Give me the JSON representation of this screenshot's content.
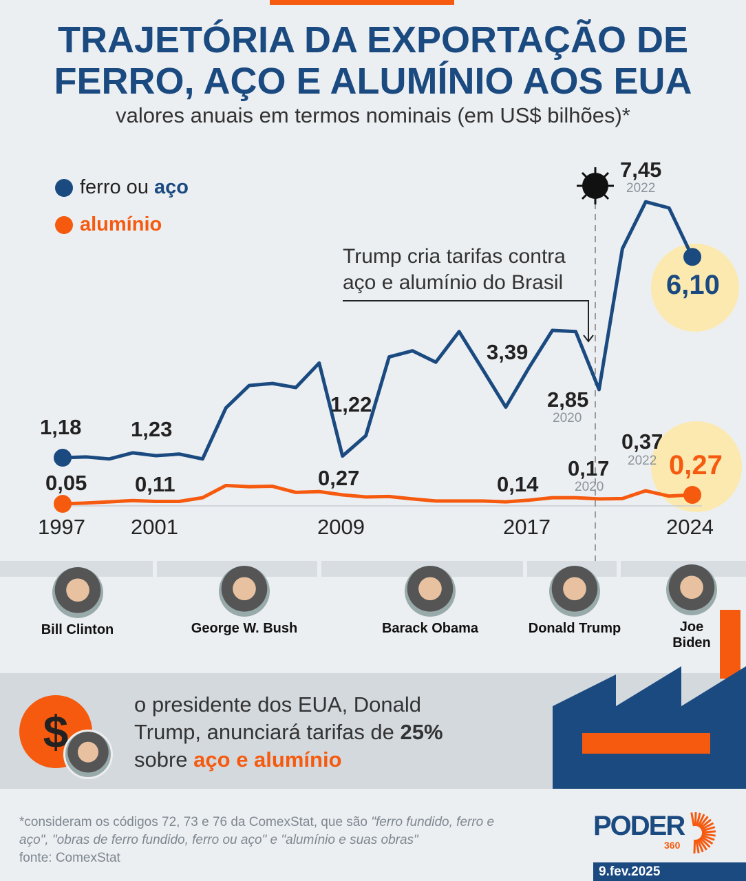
{
  "header": {
    "title_line1": "TRAJETÓRIA DA EXPORTAÇÃO DE",
    "title_line2": "FERRO, AÇO E ALUMÍNIO AOS EUA",
    "subtitle": "valores anuais em termos nominais (em US$ bilhões)*"
  },
  "colors": {
    "steel": "#1a4a80",
    "aluminum": "#f55a0f",
    "highlight": "#fbe9b0"
  },
  "chart_data": {
    "type": "line",
    "title": "TRAJETÓRIA DA EXPORTAÇÃO DE FERRO, AÇO E ALUMÍNIO AOS EUA",
    "ylabel": "US$ bilhões",
    "xlim": [
      1997,
      2024
    ],
    "ylim": [
      0,
      7.5
    ],
    "x": [
      1997,
      1998,
      1999,
      2000,
      2001,
      2002,
      2003,
      2004,
      2005,
      2006,
      2007,
      2008,
      2009,
      2010,
      2011,
      2012,
      2013,
      2014,
      2015,
      2016,
      2017,
      2018,
      2019,
      2020,
      2021,
      2022,
      2023,
      2024
    ],
    "x_ticks": [
      "1997",
      "2001",
      "2009",
      "2017",
      "2024"
    ],
    "series": [
      {
        "name": "ferro ou aço",
        "values": [
          1.18,
          1.2,
          1.15,
          1.3,
          1.23,
          1.27,
          1.15,
          2.4,
          2.95,
          3.0,
          2.9,
          3.5,
          1.22,
          1.72,
          3.65,
          3.8,
          3.52,
          4.27,
          3.35,
          2.42,
          3.39,
          4.3,
          4.27,
          2.85,
          6.3,
          7.45,
          7.3,
          6.1
        ]
      },
      {
        "name": "alumínio",
        "values": [
          0.05,
          0.07,
          0.1,
          0.13,
          0.11,
          0.11,
          0.2,
          0.5,
          0.47,
          0.48,
          0.33,
          0.35,
          0.27,
          0.22,
          0.23,
          0.17,
          0.12,
          0.12,
          0.12,
          0.1,
          0.14,
          0.2,
          0.2,
          0.17,
          0.18,
          0.37,
          0.24,
          0.27
        ]
      }
    ],
    "legend": {
      "steel_prefix": "ferro ou ",
      "steel_bold": "aço",
      "aluminum": "alumínio",
      "placement": "top-left"
    },
    "labels": {
      "s1997": "1,18",
      "s2001": "1,23",
      "s2009": "1,22",
      "s2017": "3,39",
      "s2020": "2,85",
      "s2020y": "2020",
      "s2022": "7,45",
      "s2022y": "2022",
      "s2024": "6,10",
      "a1997": "0,05",
      "a2001": "0,11",
      "a2009": "0,27",
      "a2017": "0,14",
      "a2020": "0,17",
      "a2020y": "2020",
      "a2022": "0,37",
      "a2022y": "2022",
      "a2024": "0,27"
    },
    "annotation": {
      "line1": "Trump cria tarifas contra",
      "line2": "aço e alumínio do Brasil"
    }
  },
  "presidents": [
    "Bill Clinton",
    "George W. Bush",
    "Barack Obama",
    "Donald Trump",
    "Joe",
    "Biden"
  ],
  "note": {
    "l1": "o presidente dos EUA, Donald",
    "l2a": "Trump, anunciará tarifas de ",
    "l2b": "25%",
    "l3a": "sobre ",
    "l3b": "aço e alumínio"
  },
  "footer": {
    "l1a": "*consideram os códigos 72, 73 e 76 da ComexStat, que são ",
    "l1b": "\"ferro fundido, ferro e",
    "l2": "aço\", \"obras de ferro fundido, ferro ou aço\" e \"alumínio e suas obras\"",
    "l3": "fonte: ComexStat",
    "logo": "PODER",
    "logo_sub": "360",
    "date": "9.fev.2025"
  }
}
